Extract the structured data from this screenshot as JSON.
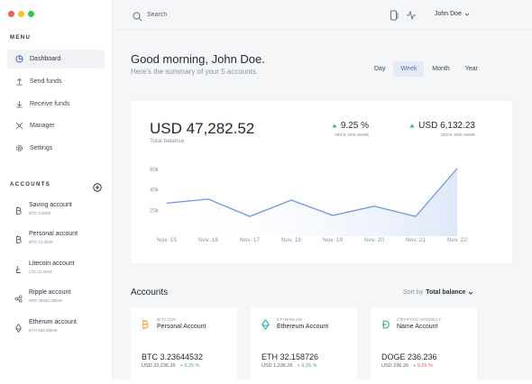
{
  "sidebar": {
    "menu_title": "MENU",
    "menu": [
      {
        "label": "Dashboard",
        "icon": "dashboard-icon",
        "active": true
      },
      {
        "label": "Send funds",
        "icon": "send-icon"
      },
      {
        "label": "Receive funds",
        "icon": "receive-icon"
      },
      {
        "label": "Manager",
        "icon": "manager-icon"
      },
      {
        "label": "Settings",
        "icon": "gear-icon"
      }
    ],
    "accounts_title": "ACCOUNTS",
    "accounts": [
      {
        "name": "Saving account",
        "sub": "BTC 0.4938",
        "icon": "bitcoin-icon"
      },
      {
        "name": "Personal account",
        "sub": "BTC 12.3945",
        "icon": "bitcoin-icon"
      },
      {
        "name": "Litecoin account",
        "sub": "LTC 31.4948",
        "icon": "litecoin-icon"
      },
      {
        "name": "Ripple account",
        "sub": "XRP 38283.38849",
        "icon": "ripple-icon"
      },
      {
        "name": "Etherum account",
        "sub": "ETH 583.38849",
        "icon": "ethereum-icon"
      }
    ]
  },
  "topbar": {
    "search_placeholder": "Search",
    "user": "John Doe"
  },
  "header": {
    "greeting": "Good morning, John Doe.",
    "subtitle": "Here's the summary of your 5 accounts.",
    "ranges": [
      "Day",
      "Week",
      "Month",
      "Year"
    ],
    "active_range": "Week"
  },
  "summary": {
    "total": "USD 47,282.52",
    "total_label": "Total balance",
    "stat1_value": "9.25 %",
    "stat1_sub": "since one week",
    "stat2_value": "USD 6,132.23",
    "stat2_sub": "since one week"
  },
  "chart_data": {
    "type": "area",
    "categories": [
      "Nov. 15",
      "Nov. 16",
      "Nov. 17",
      "Nov. 18",
      "Nov. 19",
      "Nov. 20",
      "Nov. 21",
      "Nov. 22"
    ],
    "y_ticks": [
      "60k",
      "40k",
      "20k"
    ],
    "values": [
      27000,
      31000,
      14000,
      30000,
      15000,
      24000,
      14000,
      61000
    ],
    "ylim": [
      0,
      60000
    ],
    "grid": false,
    "color": "#6f97e0"
  },
  "accounts_section": {
    "title": "Accounts",
    "sort_prefix": "Sort by",
    "sort_value": "Total balance",
    "cards": [
      {
        "type": "BITCOIN",
        "name": "Personal Account",
        "balance": "BTC 3.23644532",
        "usd": "USD 32,236.26",
        "change": "+ 9.25 %",
        "trend": "up",
        "icon": "bitcoin-icon",
        "color": "#f2a23a"
      },
      {
        "type": "ETHEREUM",
        "name": "Ethereum Account",
        "balance": "ETH 32.158726",
        "usd": "USD 1,236.26",
        "change": "+ 9.25 %",
        "trend": "up",
        "icon": "ethereum-icon",
        "color": "#2bb3b1"
      },
      {
        "type": "CRYPTOCURRENCY",
        "name": "Name Account",
        "balance": "DOGE 236.236",
        "usd": "USD 236.26",
        "change": "+ 9.25 %",
        "trend": "down",
        "icon": "dogecoin-icon",
        "color": "#3cb371"
      }
    ]
  }
}
